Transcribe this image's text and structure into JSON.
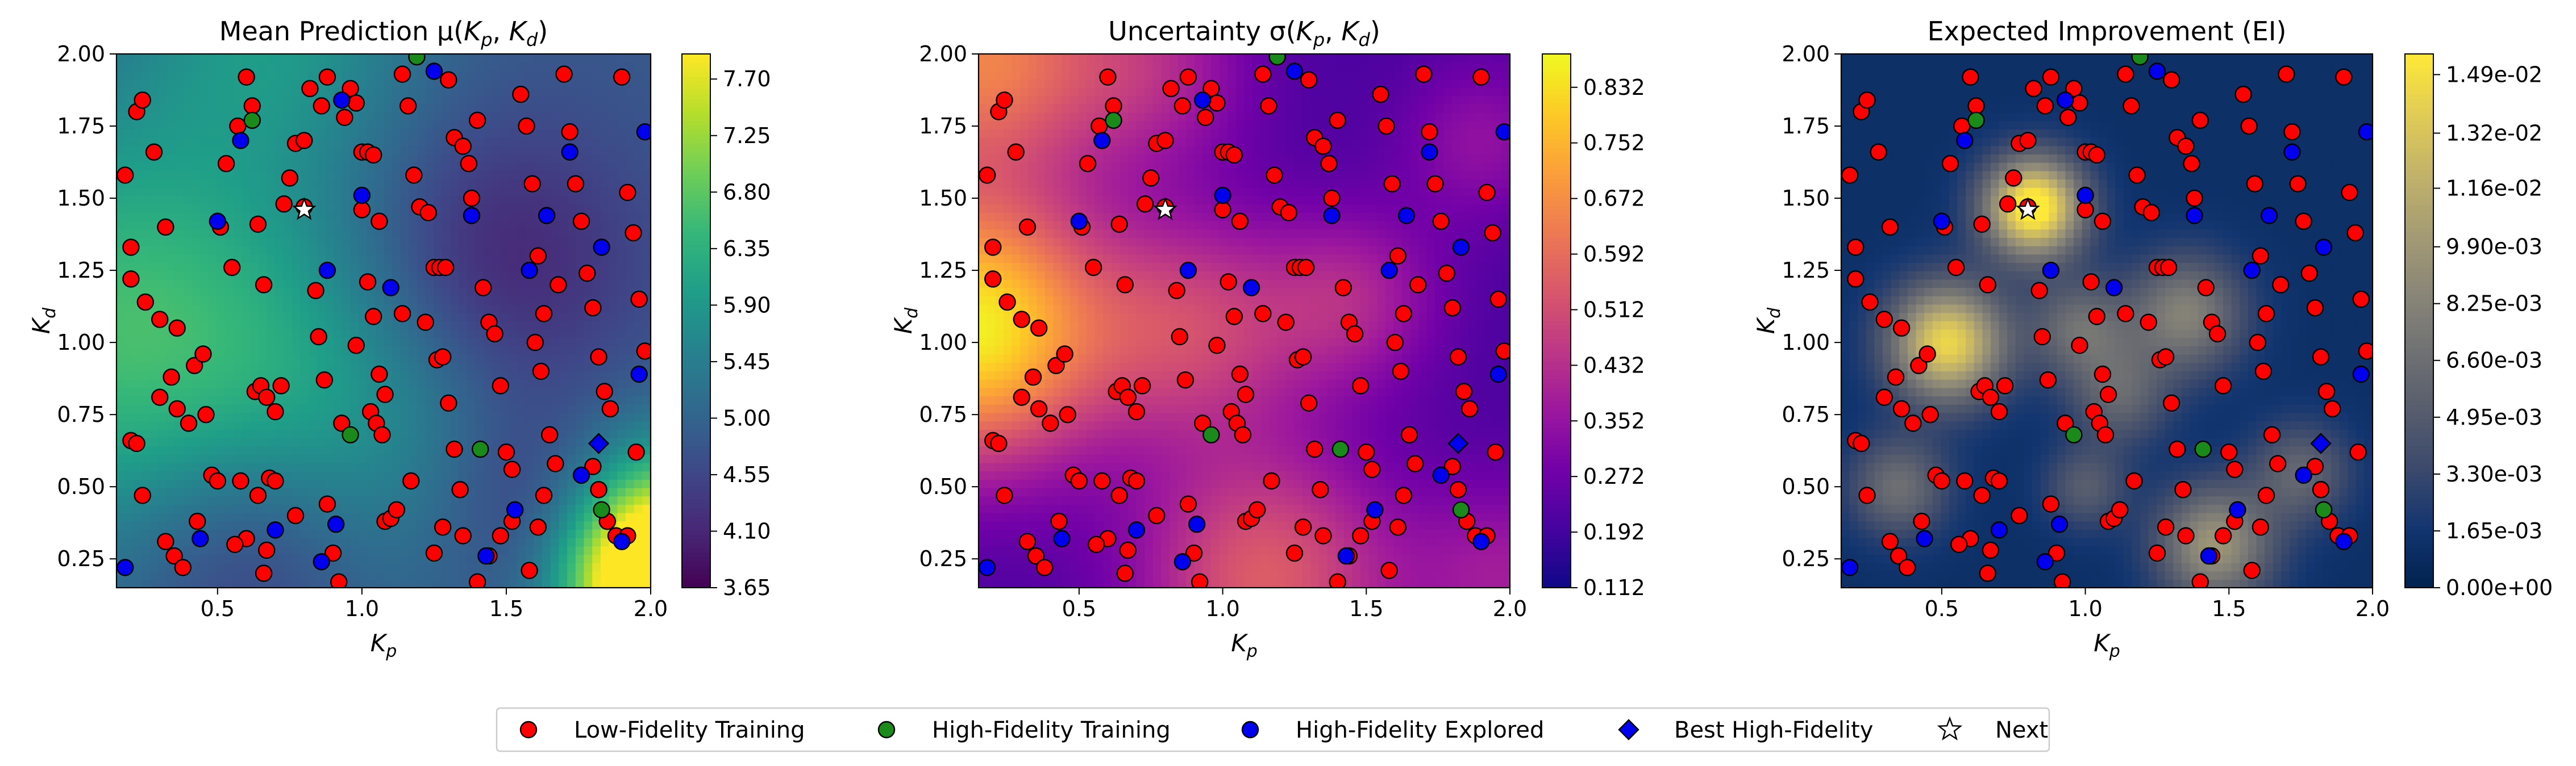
{
  "chart_data": [
    {
      "type": "heatmap",
      "title": "Mean Prediction μ(K_p, K_d)",
      "xlabel": "K_p",
      "ylabel": "K_d",
      "xlim": [
        0.15,
        2.0
      ],
      "ylim": [
        0.15,
        2.0
      ],
      "xticks": [
        0.5,
        1.0,
        1.5,
        2.0
      ],
      "yticks": [
        0.25,
        0.5,
        0.75,
        1.0,
        1.25,
        1.5,
        1.75,
        2.0
      ],
      "colormap": "viridis",
      "colorbar_range": [
        3.65,
        7.9
      ],
      "colorbar_ticks": [
        "3.65",
        "4.10",
        "4.55",
        "5.00",
        "5.45",
        "5.90",
        "6.35",
        "6.80",
        "7.25",
        "7.70"
      ],
      "colorbar_values": [
        3.65,
        4.1,
        4.55,
        5.0,
        5.45,
        5.9,
        6.35,
        6.8,
        7.25,
        7.7
      ]
    },
    {
      "type": "heatmap",
      "title": "Uncertainty σ(K_p, K_d)",
      "xlabel": "K_p",
      "ylabel": "K_d",
      "xlim": [
        0.15,
        2.0
      ],
      "ylim": [
        0.15,
        2.0
      ],
      "xticks": [
        0.5,
        1.0,
        1.5,
        2.0
      ],
      "yticks": [
        0.25,
        0.5,
        0.75,
        1.0,
        1.25,
        1.5,
        1.75,
        2.0
      ],
      "colormap": "plasma",
      "colorbar_range": [
        0.112,
        0.88
      ],
      "colorbar_ticks": [
        "0.112",
        "0.192",
        "0.272",
        "0.352",
        "0.432",
        "0.512",
        "0.592",
        "0.672",
        "0.752",
        "0.832"
      ],
      "colorbar_values": [
        0.112,
        0.192,
        0.272,
        0.352,
        0.432,
        0.512,
        0.592,
        0.672,
        0.752,
        0.832
      ]
    },
    {
      "type": "heatmap",
      "title": "Expected Improvement (EI)",
      "xlabel": "K_p",
      "ylabel": "K_d",
      "xlim": [
        0.15,
        2.0
      ],
      "ylim": [
        0.15,
        2.0
      ],
      "xticks": [
        0.5,
        1.0,
        1.5,
        2.0
      ],
      "yticks": [
        0.25,
        0.5,
        0.75,
        1.0,
        1.25,
        1.5,
        1.75,
        2.0
      ],
      "colormap": "cividis",
      "colorbar_range": [
        0.0,
        0.0155
      ],
      "colorbar_ticks": [
        "0.00e+00",
        "1.65e-03",
        "3.30e-03",
        "4.95e-03",
        "6.60e-03",
        "8.25e-03",
        "9.90e-03",
        "1.16e-02",
        "1.32e-02",
        "1.49e-02"
      ],
      "colorbar_values": [
        0,
        0.00165,
        0.0033,
        0.00495,
        0.0066,
        0.00825,
        0.0099,
        0.0116,
        0.0132,
        0.0149
      ]
    }
  ],
  "points": {
    "low_fidelity": [
      [
        0.18,
        1.58
      ],
      [
        0.2,
        1.33
      ],
      [
        0.22,
        1.8
      ],
      [
        0.24,
        1.84
      ],
      [
        0.2,
        1.22
      ],
      [
        0.25,
        1.14
      ],
      [
        0.28,
        1.66
      ],
      [
        0.32,
        1.4
      ],
      [
        0.36,
        1.05
      ],
      [
        0.3,
        1.08
      ],
      [
        0.2,
        0.66
      ],
      [
        0.22,
        0.65
      ],
      [
        0.24,
        0.47
      ],
      [
        0.3,
        0.81
      ],
      [
        0.34,
        0.88
      ],
      [
        0.36,
        0.77
      ],
      [
        0.4,
        0.72
      ],
      [
        0.42,
        0.92
      ],
      [
        0.46,
        0.75
      ],
      [
        0.45,
        0.96
      ],
      [
        0.32,
        0.31
      ],
      [
        0.35,
        0.26
      ],
      [
        0.38,
        0.22
      ],
      [
        0.43,
        0.38
      ],
      [
        0.48,
        0.54
      ],
      [
        0.5,
        0.52
      ],
      [
        0.51,
        1.4
      ],
      [
        0.53,
        1.62
      ],
      [
        0.55,
        1.26
      ],
      [
        0.57,
        1.75
      ],
      [
        0.6,
        1.92
      ],
      [
        0.62,
        1.82
      ],
      [
        0.64,
        1.41
      ],
      [
        0.66,
        1.2
      ],
      [
        0.63,
        0.83
      ],
      [
        0.65,
        0.85
      ],
      [
        0.67,
        0.81
      ],
      [
        0.7,
        0.76
      ],
      [
        0.72,
        0.85
      ],
      [
        0.68,
        0.53
      ],
      [
        0.7,
        0.52
      ],
      [
        0.64,
        0.47
      ],
      [
        0.6,
        0.32
      ],
      [
        0.56,
        0.3
      ],
      [
        0.58,
        0.52
      ],
      [
        0.67,
        0.28
      ],
      [
        0.66,
        0.2
      ],
      [
        0.73,
        1.48
      ],
      [
        0.75,
        1.57
      ],
      [
        0.77,
        1.69
      ],
      [
        0.8,
        1.7
      ],
      [
        0.82,
        1.88
      ],
      [
        0.86,
        1.82
      ],
      [
        0.88,
        1.92
      ],
      [
        0.8,
        1.47
      ],
      [
        0.84,
        1.18
      ],
      [
        0.85,
        1.02
      ],
      [
        0.87,
        0.87
      ],
      [
        0.88,
        0.44
      ],
      [
        0.9,
        0.27
      ],
      [
        0.92,
        0.17
      ],
      [
        0.94,
        1.78
      ],
      [
        0.96,
        1.88
      ],
      [
        0.98,
        1.83
      ],
      [
        1.0,
        1.66
      ],
      [
        1.02,
        1.66
      ],
      [
        1.04,
        1.65
      ],
      [
        1.06,
        1.42
      ],
      [
        1.0,
        1.46
      ],
      [
        1.02,
        1.21
      ],
      [
        1.04,
        1.09
      ],
      [
        1.06,
        0.89
      ],
      [
        1.08,
        0.82
      ],
      [
        1.03,
        0.76
      ],
      [
        1.05,
        0.72
      ],
      [
        1.07,
        0.68
      ],
      [
        1.08,
        0.38
      ],
      [
        1.1,
        0.39
      ],
      [
        1.12,
        0.42
      ],
      [
        1.14,
        1.93
      ],
      [
        1.16,
        1.82
      ],
      [
        1.18,
        1.58
      ],
      [
        1.2,
        1.47
      ],
      [
        1.23,
        1.45
      ],
      [
        1.25,
        1.26
      ],
      [
        1.27,
        1.26
      ],
      [
        1.29,
        1.26
      ],
      [
        1.22,
        1.07
      ],
      [
        1.26,
        0.94
      ],
      [
        1.28,
        0.95
      ],
      [
        1.3,
        0.79
      ],
      [
        1.32,
        0.63
      ],
      [
        1.34,
        0.49
      ],
      [
        1.28,
        0.36
      ],
      [
        1.25,
        0.27
      ],
      [
        1.3,
        1.91
      ],
      [
        1.32,
        1.71
      ],
      [
        1.35,
        1.68
      ],
      [
        1.38,
        1.5
      ],
      [
        1.4,
        1.77
      ],
      [
        1.42,
        1.19
      ],
      [
        1.44,
        1.07
      ],
      [
        1.46,
        1.03
      ],
      [
        1.48,
        0.85
      ],
      [
        1.5,
        0.62
      ],
      [
        1.52,
        0.56
      ],
      [
        1.48,
        0.33
      ],
      [
        1.44,
        0.26
      ],
      [
        1.4,
        0.17
      ],
      [
        1.55,
        1.86
      ],
      [
        1.57,
        1.75
      ],
      [
        1.59,
        1.55
      ],
      [
        1.61,
        1.3
      ],
      [
        1.63,
        1.1
      ],
      [
        1.6,
        1.0
      ],
      [
        1.62,
        0.9
      ],
      [
        1.65,
        0.68
      ],
      [
        1.67,
        0.58
      ],
      [
        1.63,
        0.47
      ],
      [
        1.61,
        0.36
      ],
      [
        1.58,
        0.21
      ],
      [
        1.7,
        1.93
      ],
      [
        1.72,
        1.73
      ],
      [
        1.74,
        1.55
      ],
      [
        1.76,
        1.42
      ],
      [
        1.78,
        1.24
      ],
      [
        1.8,
        1.12
      ],
      [
        1.82,
        0.95
      ],
      [
        1.84,
        0.83
      ],
      [
        1.86,
        0.77
      ],
      [
        1.8,
        0.57
      ],
      [
        1.82,
        0.49
      ],
      [
        1.85,
        0.38
      ],
      [
        1.88,
        0.33
      ],
      [
        1.9,
        1.92
      ],
      [
        1.92,
        1.52
      ],
      [
        1.94,
        1.38
      ],
      [
        1.96,
        1.15
      ],
      [
        1.98,
        0.97
      ],
      [
        1.95,
        0.62
      ],
      [
        1.92,
        0.33
      ],
      [
        1.68,
        1.2
      ],
      [
        1.37,
        1.62
      ],
      [
        1.14,
        1.1
      ],
      [
        0.98,
        0.99
      ],
      [
        0.93,
        0.72
      ],
      [
        1.17,
        0.52
      ],
      [
        1.35,
        0.33
      ],
      [
        1.52,
        0.38
      ],
      [
        0.77,
        0.4
      ]
    ],
    "high_fidelity": [
      [
        0.62,
        1.77
      ],
      [
        1.19,
        1.99
      ],
      [
        0.96,
        0.68
      ],
      [
        1.41,
        0.63
      ],
      [
        1.83,
        0.42
      ]
    ],
    "explored": [
      [
        0.18,
        0.22
      ],
      [
        0.44,
        0.32
      ],
      [
        0.5,
        1.42
      ],
      [
        0.58,
        1.7
      ],
      [
        0.7,
        0.35
      ],
      [
        0.86,
        0.24
      ],
      [
        0.91,
        0.37
      ],
      [
        0.93,
        1.84
      ],
      [
        1.0,
        1.51
      ],
      [
        1.1,
        1.19
      ],
      [
        0.88,
        1.25
      ],
      [
        1.25,
        1.94
      ],
      [
        1.38,
        1.44
      ],
      [
        1.43,
        0.26
      ],
      [
        1.53,
        0.42
      ],
      [
        1.58,
        1.25
      ],
      [
        1.64,
        1.44
      ],
      [
        1.72,
        1.66
      ],
      [
        1.76,
        0.54
      ],
      [
        1.83,
        1.33
      ],
      [
        1.9,
        0.31
      ],
      [
        1.98,
        1.73
      ],
      [
        1.96,
        0.89
      ]
    ],
    "best": [
      1.82,
      0.65
    ],
    "next": [
      0.8,
      1.46
    ]
  },
  "legend": [
    "Low-Fidelity Training",
    "High-Fidelity Training",
    "High-Fidelity Explored",
    "Best High-Fidelity",
    "Next"
  ],
  "colors": {
    "low_fidelity": "#ff0000",
    "high_fidelity": "#1a8a1a",
    "explored": "#0000ee",
    "best": "#0000ee",
    "next": "#ffffff",
    "marker_edge": "#000000"
  }
}
